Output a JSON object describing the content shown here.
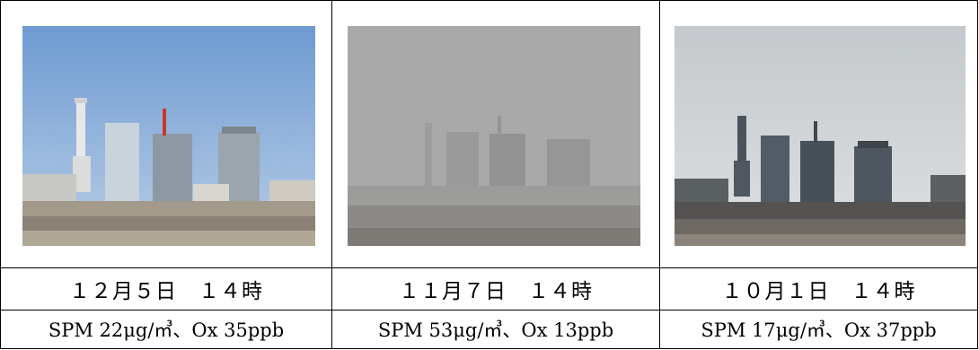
{
  "columns": [
    {
      "photo": "clear-sky-city-skyline-photo",
      "date": "１２月５日　１４時",
      "measurement": "SPM 22μg/㎥、Ox 35ppb"
    },
    {
      "photo": "hazy-city-skyline-photo",
      "date": "１１月７日　１４時",
      "measurement": "SPM 53μg/㎥、Ox 13ppb"
    },
    {
      "photo": "overcast-city-skyline-photo",
      "date": "１０月１日　１４時",
      "measurement": "SPM 17μg/㎥、Ox 37ppb"
    }
  ],
  "colors": {
    "clear_sky": "#8fb3dc",
    "hazy_sky": "#a9a9a9",
    "overcast_sky": "#cfd3d6"
  }
}
